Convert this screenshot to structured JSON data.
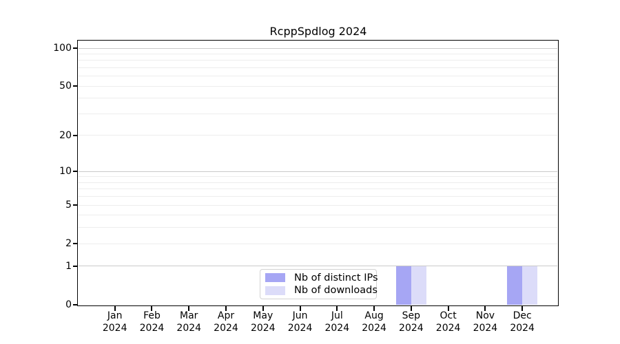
{
  "chart_data": {
    "type": "bar",
    "title": "RcppSpdlog 2024",
    "categories": [
      "Jan 2024",
      "Feb 2024",
      "Mar 2024",
      "Apr 2024",
      "May 2024",
      "Jun 2024",
      "Jul 2024",
      "Aug 2024",
      "Sep 2024",
      "Oct 2024",
      "Nov 2024",
      "Dec 2024"
    ],
    "series": [
      {
        "name": "Nb of distinct IPs",
        "color": "#a6a6f4",
        "values": [
          0,
          0,
          0,
          0,
          0,
          0,
          0,
          0,
          1,
          0,
          0,
          1
        ]
      },
      {
        "name": "Nb of downloads",
        "color": "#dcdcf9",
        "values": [
          0,
          0,
          0,
          0,
          0,
          0,
          0,
          0,
          1,
          0,
          0,
          1
        ]
      }
    ],
    "xlabel": "",
    "ylabel": "",
    "yscale": "log1p",
    "ylim": [
      0,
      113
    ],
    "yticks": [
      0,
      1,
      2,
      5,
      10,
      20,
      50,
      100
    ],
    "minor_yticks": [
      2,
      3,
      4,
      5,
      6,
      7,
      8,
      9,
      20,
      30,
      40,
      50,
      60,
      70,
      80,
      90
    ],
    "major_grid_values": [
      1,
      10,
      100
    ],
    "grid": true,
    "legend_position": "lower center inside"
  },
  "colors": {
    "background": "#ffffff",
    "spine": "#000000",
    "major_grid": "#c9c9c9",
    "minor_grid": "#ededed",
    "legend_border": "#d2d2d2",
    "text": "#000000"
  }
}
